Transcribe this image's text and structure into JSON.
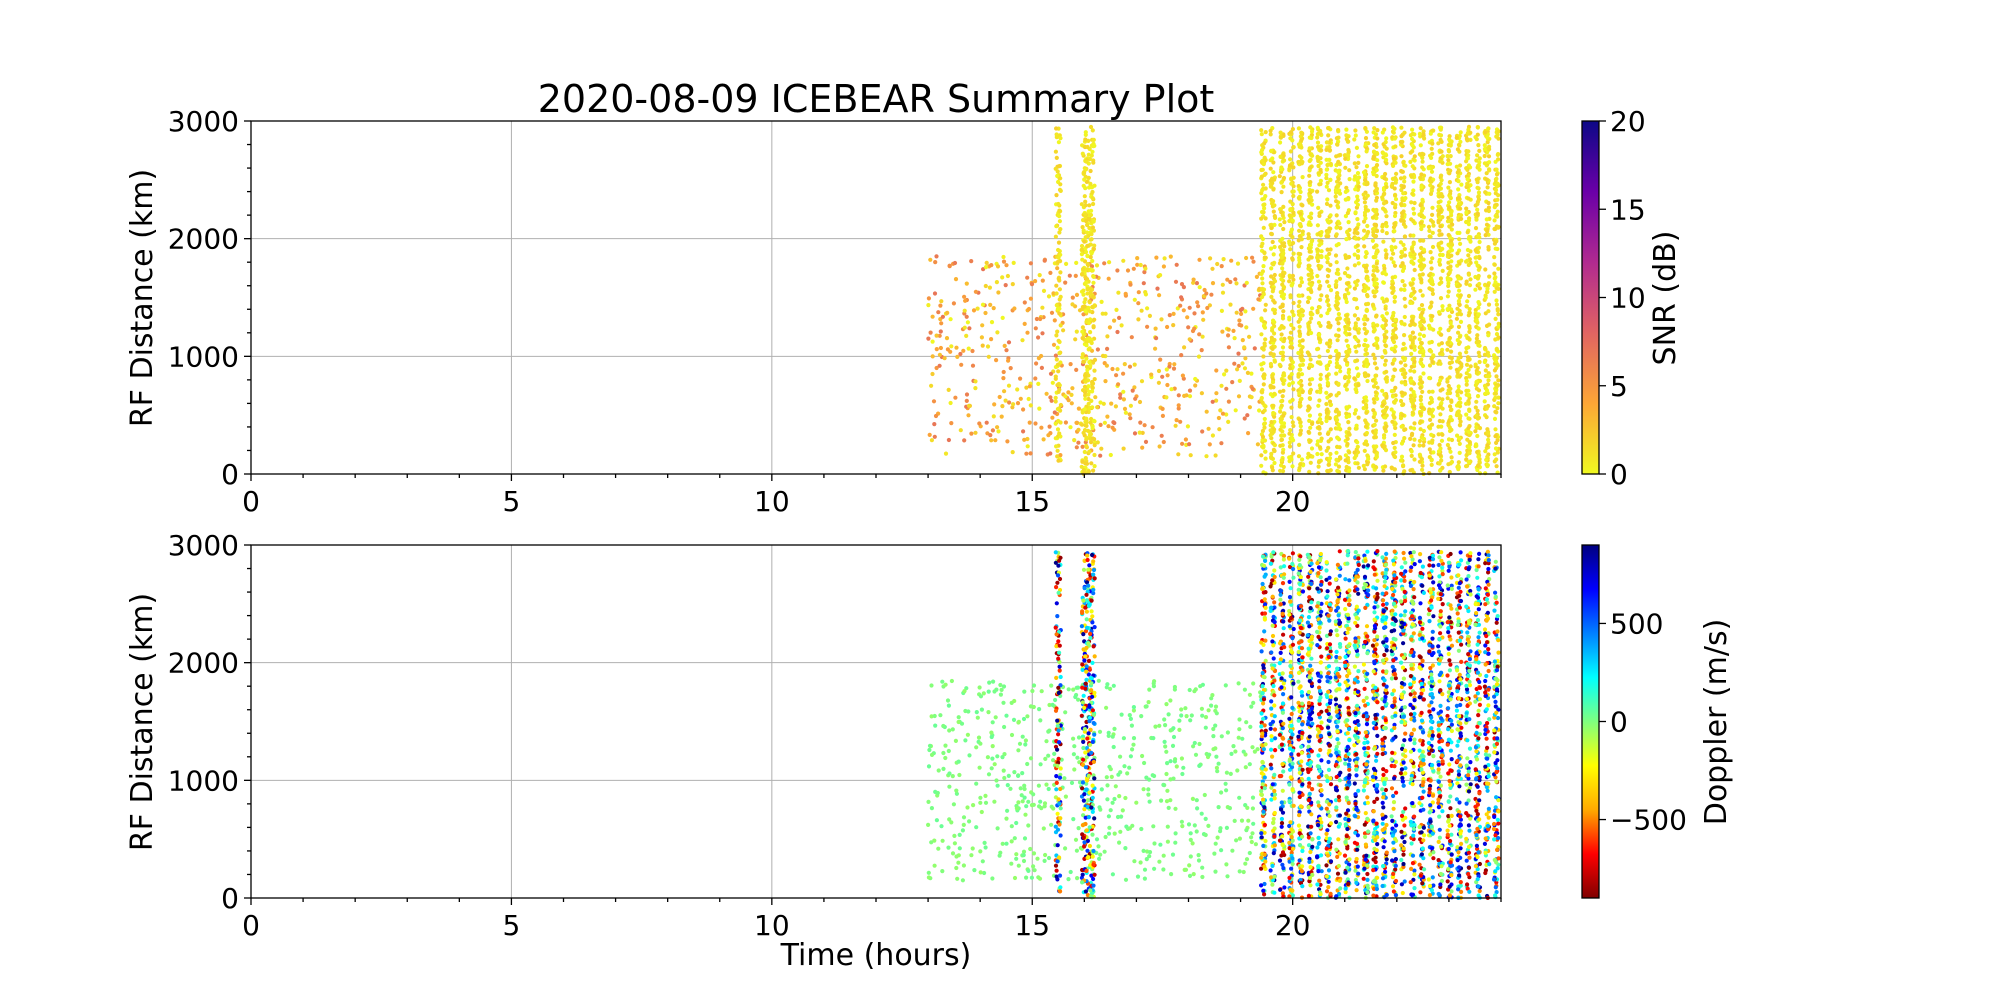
{
  "figure": {
    "title": "2020-08-09 ICEBEAR Summary Plot"
  },
  "chart_data": [
    {
      "type": "scatter",
      "panel": "top",
      "title": "2020-08-09 ICEBEAR Summary Plot",
      "xlabel": "",
      "ylabel": "RF Distance (km)",
      "xlim": [
        0,
        24
      ],
      "ylim": [
        0,
        3000
      ],
      "x_ticks": [
        "0",
        "5",
        "10",
        "15",
        "20"
      ],
      "y_ticks": [
        "0",
        "1000",
        "2000",
        "3000"
      ],
      "grid": true,
      "color_by": "SNR",
      "colorbar": {
        "label": "SNR (dB)",
        "colormap": "plasma_r",
        "range": [
          0,
          20
        ],
        "ticks": [
          "0",
          "5",
          "10",
          "15",
          "20"
        ],
        "colors": [
          "#f0f921",
          "#fca636",
          "#e16462",
          "#b12a90",
          "#6a00a8",
          "#0d0887"
        ]
      },
      "clusters": [
        {
          "x_range": [
            13.0,
            19.4
          ],
          "y_range": [
            150,
            1850
          ],
          "count": 620,
          "value_range": [
            0,
            7
          ]
        },
        {
          "x_range": [
            15.45,
            15.55
          ],
          "y_range": [
            50,
            2950
          ],
          "count": 110,
          "value_range": [
            0,
            2
          ]
        },
        {
          "x_range": [
            15.95,
            16.2
          ],
          "y_range": [
            0,
            2950
          ],
          "count": 320,
          "value_range": [
            0,
            2
          ]
        },
        {
          "x_range": [
            19.35,
            24.0
          ],
          "y_range": [
            0,
            2950
          ],
          "count": 3400,
          "value_range": [
            0,
            2
          ]
        }
      ]
    },
    {
      "type": "scatter",
      "panel": "bottom",
      "title": "",
      "xlabel": "Time (hours)",
      "ylabel": "RF Distance (km)",
      "xlim": [
        0,
        24
      ],
      "ylim": [
        0,
        3000
      ],
      "x_ticks": [
        "0",
        "5",
        "10",
        "15",
        "20"
      ],
      "y_ticks": [
        "0",
        "1000",
        "2000",
        "3000"
      ],
      "grid": true,
      "color_by": "Doppler",
      "colorbar": {
        "label": "Doppler (m/s)",
        "colormap": "jet_r",
        "range": [
          -900,
          900
        ],
        "ticks": [
          "−500",
          "0",
          "500"
        ],
        "colors": [
          "#800000",
          "#ff0000",
          "#ffaa00",
          "#ffff00",
          "#7fff7f",
          "#00ffff",
          "#0080ff",
          "#0000ff",
          "#000080"
        ]
      },
      "clusters": [
        {
          "x_range": [
            13.0,
            19.4
          ],
          "y_range": [
            150,
            1850
          ],
          "count": 620,
          "value_range": [
            -40,
            40
          ]
        },
        {
          "x_range": [
            15.45,
            15.55
          ],
          "y_range": [
            50,
            2950
          ],
          "count": 110,
          "value_range": [
            -900,
            900
          ]
        },
        {
          "x_range": [
            15.95,
            16.2
          ],
          "y_range": [
            0,
            2950
          ],
          "count": 320,
          "value_range": [
            -900,
            900
          ]
        },
        {
          "x_range": [
            19.35,
            24.0
          ],
          "y_range": [
            0,
            2950
          ],
          "count": 3400,
          "value_range": [
            -900,
            900
          ]
        }
      ]
    }
  ]
}
